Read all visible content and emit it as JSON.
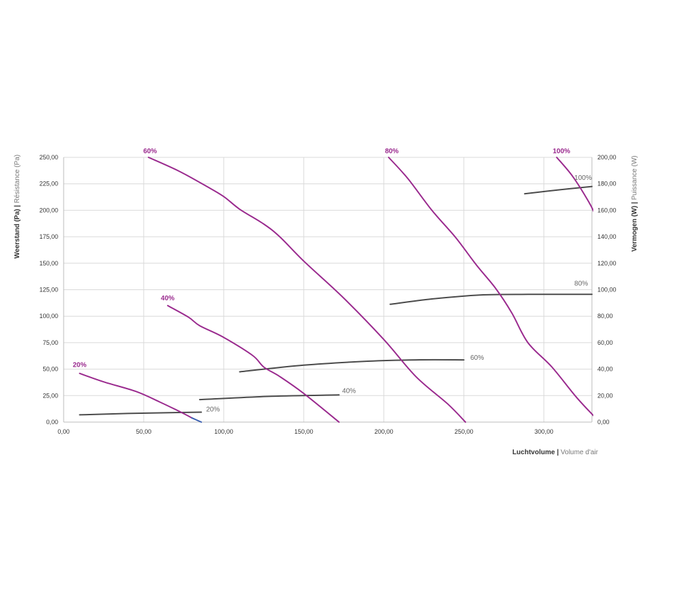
{
  "chart_data": {
    "type": "line",
    "xlabel": {
      "bold": "Luchtvolume",
      "separator": " | ",
      "light": "Volume d'air"
    },
    "ylabel": {
      "bold": "Weerstand (Pa)",
      "separator": " | ",
      "light": "Résistance (Pa)"
    },
    "y2label": {
      "bold": "Vermogen (W)",
      "separator": " | ",
      "light": "Puissance (W)"
    },
    "xlim": [
      0,
      330
    ],
    "ylim": [
      0,
      250
    ],
    "y2lim": [
      0,
      200
    ],
    "x_ticks": [
      "0,00",
      "50,00",
      "100,00",
      "150,00",
      "200,00",
      "250,00",
      "300,00"
    ],
    "x_tick_values": [
      0,
      50,
      100,
      150,
      200,
      250,
      300
    ],
    "y_ticks": [
      "0,00",
      "25,00",
      "50,00",
      "75,00",
      "100,00",
      "125,00",
      "150,00",
      "175,00",
      "200,00",
      "225,00",
      "250,00"
    ],
    "y_tick_values": [
      0,
      25,
      50,
      75,
      100,
      125,
      150,
      175,
      200,
      225,
      250
    ],
    "y2_ticks": [
      "0,00",
      "20,00",
      "40,00",
      "60,00",
      "80,00",
      "100,00",
      "120,00",
      "140,00",
      "160,00",
      "180,00",
      "200,00"
    ],
    "y2_tick_values": [
      0,
      20,
      40,
      60,
      80,
      100,
      120,
      140,
      160,
      180,
      200
    ],
    "grid": true,
    "colors": {
      "pressure": "#9a2a8e",
      "power": "#4a4a4a",
      "grid": "#d9d9d9",
      "tail": "#3a5fb0"
    },
    "pressure_series": [
      {
        "name": "20%",
        "axis": "left",
        "label_at": [
          10,
          52
        ],
        "points": [
          [
            10,
            46
          ],
          [
            25,
            38
          ],
          [
            45,
            29
          ],
          [
            60,
            19
          ],
          [
            75,
            8
          ],
          [
            80,
            4
          ]
        ],
        "tail": [
          [
            80,
            4
          ],
          [
            86,
            0
          ]
        ]
      },
      {
        "name": "40%",
        "axis": "left",
        "label_at": [
          65,
          115
        ],
        "points": [
          [
            65,
            110
          ],
          [
            78,
            99
          ],
          [
            85,
            91
          ],
          [
            100,
            80
          ],
          [
            118,
            63
          ],
          [
            125,
            52
          ],
          [
            135,
            43
          ],
          [
            150,
            27
          ],
          [
            172,
            0
          ]
        ]
      },
      {
        "name": "60%",
        "axis": "left",
        "label_at": [
          54,
          254
        ],
        "points": [
          [
            53,
            250
          ],
          [
            72,
            237
          ],
          [
            90,
            222
          ],
          [
            100,
            213
          ],
          [
            110,
            201
          ],
          [
            125,
            187
          ],
          [
            135,
            175
          ],
          [
            150,
            152
          ],
          [
            175,
            117
          ],
          [
            200,
            78
          ],
          [
            220,
            43
          ],
          [
            240,
            17
          ],
          [
            251,
            0
          ]
        ]
      },
      {
        "name": "80%",
        "axis": "left",
        "label_at": [
          205,
          254
        ],
        "points": [
          [
            203,
            250
          ],
          [
            215,
            230
          ],
          [
            230,
            200
          ],
          [
            245,
            174
          ],
          [
            258,
            148
          ],
          [
            270,
            126
          ],
          [
            280,
            103
          ],
          [
            290,
            75
          ],
          [
            305,
            52
          ],
          [
            320,
            24
          ],
          [
            331,
            6
          ]
        ]
      },
      {
        "name": "100%",
        "axis": "left",
        "label_at": [
          311,
          254
        ],
        "points": [
          [
            308,
            250
          ],
          [
            318,
            232
          ],
          [
            328,
            208
          ],
          [
            332,
            196
          ]
        ]
      }
    ],
    "power_series": [
      {
        "name": "20%",
        "axis": "right",
        "label_at": [
          89,
          8
        ],
        "points": [
          [
            10,
            5.5
          ],
          [
            40,
            6.5
          ],
          [
            86,
            7.5
          ]
        ]
      },
      {
        "name": "40%",
        "axis": "right",
        "label_at": [
          174,
          22
        ],
        "points": [
          [
            85,
            17
          ],
          [
            130,
            19.5
          ],
          [
            172,
            20.5
          ]
        ]
      },
      {
        "name": "60%",
        "axis": "right",
        "label_at": [
          254,
          47
        ],
        "points": [
          [
            110,
            38
          ],
          [
            150,
            43
          ],
          [
            190,
            46
          ],
          [
            220,
            47
          ],
          [
            250,
            47
          ]
        ]
      },
      {
        "name": "80%",
        "axis": "right",
        "label_at": [
          319,
          103
        ],
        "points": [
          [
            204,
            89
          ],
          [
            230,
            93
          ],
          [
            260,
            96
          ],
          [
            290,
            96.5
          ],
          [
            330,
            96.5
          ]
        ]
      },
      {
        "name": "100%",
        "axis": "right",
        "label_at": [
          319,
          183
        ],
        "points": [
          [
            288,
            172.5
          ],
          [
            310,
            175.5
          ],
          [
            330,
            178
          ]
        ]
      }
    ]
  }
}
